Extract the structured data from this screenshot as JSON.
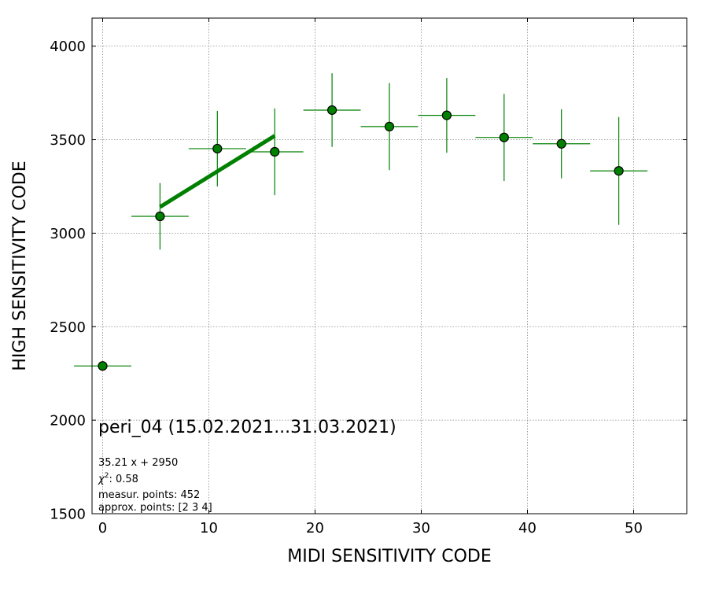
{
  "chart_data": {
    "type": "scatter",
    "xlabel": "MIDI SENSITIVITY CODE",
    "ylabel": "HIGH SENSITIVITY CODE",
    "xlim": [
      -1,
      55
    ],
    "ylim": [
      1500,
      4150
    ],
    "xticks": [
      0,
      10,
      20,
      30,
      40,
      50
    ],
    "yticks": [
      1500,
      2000,
      2500,
      3000,
      3500,
      4000
    ],
    "xtick_labels": [
      "0",
      "10",
      "20",
      "30",
      "40",
      "50"
    ],
    "ytick_labels": [
      "1500",
      "2000",
      "2500",
      "3000",
      "3500",
      "4000"
    ],
    "grid": true,
    "title": "peri_04 (15.02.2021...31.03.2021)",
    "annotations": {
      "fit": "35.21 x + 2950",
      "chi2_symbol": "χ",
      "chi2_exp": "2",
      "chi2_value": ": 0.58",
      "measur": "measur. points: 452",
      "approx": "approx. points: [2 3 4]"
    },
    "series": [
      {
        "marker_color": "#008000",
        "points": [
          {
            "x": 0.0,
            "y": 2290,
            "xerr": 2.7,
            "yerr": 20
          },
          {
            "x": 5.4,
            "y": 3090,
            "xerr": 2.7,
            "yerr": 178
          },
          {
            "x": 10.8,
            "y": 3452,
            "xerr": 2.7,
            "yerr": 202
          },
          {
            "x": 16.2,
            "y": 3435,
            "xerr": 2.7,
            "yerr": 232
          },
          {
            "x": 21.6,
            "y": 3658,
            "xerr": 2.7,
            "yerr": 197
          },
          {
            "x": 27.0,
            "y": 3570,
            "xerr": 2.7,
            "yerr": 233
          },
          {
            "x": 32.4,
            "y": 3630,
            "xerr": 2.7,
            "yerr": 200
          },
          {
            "x": 37.8,
            "y": 3512,
            "xerr": 2.7,
            "yerr": 233
          },
          {
            "x": 43.2,
            "y": 3478,
            "xerr": 2.7,
            "yerr": 185
          },
          {
            "x": 48.6,
            "y": 3333,
            "xerr": 2.7,
            "yerr": 288
          }
        ]
      }
    ],
    "fit_line": {
      "slope": 35.21,
      "intercept": 2950,
      "x_start": 5.4,
      "x_end": 16.2,
      "color": "#008000"
    }
  }
}
